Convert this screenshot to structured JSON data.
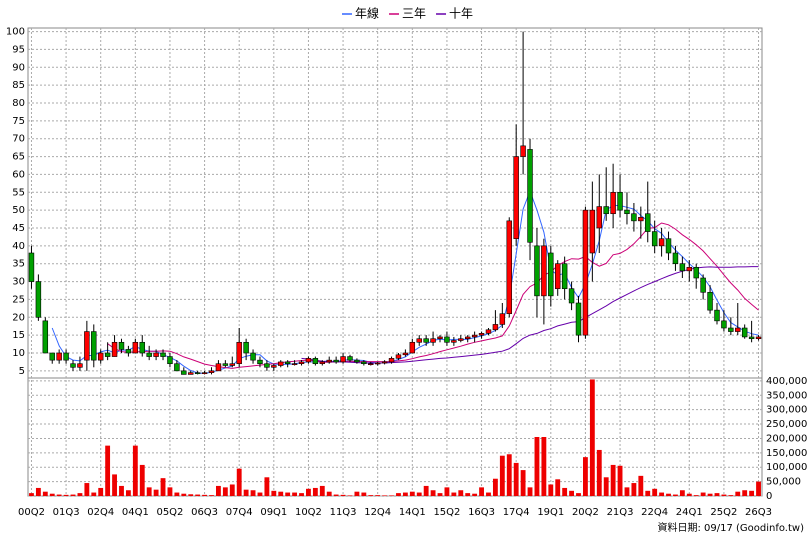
{
  "chart_data": {
    "type": "candlestick",
    "categories": [
      "00Q2",
      null,
      null,
      null,
      null,
      "01Q3",
      null,
      null,
      null,
      null,
      "02Q4",
      null,
      null,
      null,
      null,
      "04Q1",
      null,
      null,
      null,
      null,
      "05Q2",
      null,
      null,
      null,
      null,
      "06Q3",
      null,
      null,
      null,
      null,
      "07Q4",
      null,
      null,
      null,
      null,
      "09Q1",
      null,
      null,
      null,
      null,
      "10Q2",
      null,
      null,
      null,
      null,
      "11Q3",
      null,
      null,
      null,
      null,
      "12Q4",
      null,
      null,
      null,
      null,
      "14Q1",
      null,
      null,
      null,
      null,
      "15Q2",
      null,
      null,
      null,
      null,
      "16Q3",
      null,
      null,
      null,
      null,
      "17Q4",
      null,
      null,
      null,
      null,
      "19Q1",
      null,
      null,
      null,
      null,
      "20Q2",
      null,
      null,
      null,
      null,
      "21Q3",
      null,
      null,
      null,
      null,
      "22Q4",
      null,
      null,
      null,
      null,
      "24Q1",
      null,
      null,
      null,
      null,
      "25Q2",
      null,
      null,
      null,
      null,
      "26Q3"
    ],
    "open": [
      38,
      30,
      19,
      10,
      8,
      10,
      7,
      6,
      8,
      16,
      8,
      10,
      9,
      13,
      11,
      10,
      13,
      10,
      9,
      10,
      9,
      7,
      5,
      4,
      4.5,
      4.2,
      4.5,
      5,
      7,
      6.5,
      7,
      13,
      10,
      8,
      7,
      6,
      6.5,
      7.5,
      7,
      7,
      7.5,
      8.5,
      7,
      7.5,
      8,
      7.5,
      9,
      8,
      7.5,
      7,
      7,
      7.2,
      7.5,
      8.5,
      9.5,
      10,
      13,
      14,
      13,
      14,
      14.5,
      13,
      13.5,
      14,
      14.5,
      15,
      15.5,
      16.5,
      18,
      21,
      42,
      65,
      67,
      40,
      26,
      38,
      28,
      35,
      28,
      24,
      15,
      38,
      45,
      51,
      49,
      55,
      50,
      49,
      47,
      49,
      44,
      40,
      42,
      38,
      35,
      33,
      34,
      31,
      27,
      22,
      19,
      17,
      16,
      17,
      14.5,
      14
    ],
    "high": [
      40,
      32,
      20,
      10,
      11,
      11,
      8,
      9,
      19,
      18,
      11,
      13,
      15,
      14,
      12,
      14,
      15,
      12,
      11,
      11,
      10,
      8,
      6,
      5,
      5,
      5,
      6,
      8,
      8,
      9,
      17,
      14,
      11,
      9,
      8,
      7,
      8,
      8,
      8,
      8,
      9,
      9,
      8,
      9,
      9,
      10,
      9.5,
      8.5,
      8,
      7.5,
      7.5,
      8,
      9,
      10,
      11,
      14,
      15,
      15,
      16,
      15,
      16,
      14.5,
      15,
      15,
      16,
      16,
      17,
      22,
      24,
      48,
      74,
      100,
      70,
      45,
      42,
      40,
      36,
      37,
      30,
      26,
      51,
      58,
      60,
      62,
      63,
      60,
      55,
      52,
      51,
      58,
      47,
      45,
      44,
      40,
      37,
      36,
      35,
      32,
      29,
      24,
      22,
      20,
      24,
      18,
      19,
      15
    ],
    "low": [
      28,
      19,
      10,
      7,
      7,
      7,
      5,
      5,
      5,
      6,
      7,
      8,
      9,
      10,
      9,
      10,
      9,
      8,
      8,
      8,
      6,
      5,
      4,
      4,
      4,
      4,
      4,
      5,
      6,
      6,
      6,
      8,
      7,
      6,
      5,
      5,
      6,
      6,
      6.5,
      6.5,
      7,
      6.5,
      6.5,
      7,
      7,
      7,
      7.5,
      7,
      6.5,
      6.5,
      6.5,
      6.8,
      7,
      8,
      9,
      10,
      12,
      12,
      12,
      13,
      12,
      12,
      13,
      13,
      13,
      14,
      15,
      16,
      17,
      20,
      40,
      60,
      36,
      20,
      18,
      23,
      26,
      25,
      22,
      13,
      14,
      30,
      38,
      47,
      45,
      48,
      46,
      44,
      42,
      41,
      38,
      37,
      36,
      33,
      31,
      30,
      28,
      25,
      21,
      18,
      16,
      15,
      15,
      14,
      13,
      13.5
    ],
    "close": [
      30,
      20,
      10,
      8,
      10,
      8,
      6,
      7,
      16,
      8,
      10,
      9,
      13,
      11,
      10,
      13,
      10,
      9,
      10,
      9,
      7,
      5,
      4,
      4.5,
      4.2,
      4.5,
      5,
      7,
      6.5,
      7,
      13,
      10,
      8,
      7,
      6,
      6.5,
      7.5,
      7,
      7,
      7.5,
      8.5,
      7,
      7.5,
      8,
      7.5,
      9,
      8,
      7.5,
      7,
      7,
      7.2,
      7.5,
      8.5,
      9.5,
      10,
      13,
      14,
      13,
      14,
      14.5,
      13,
      13.5,
      14,
      14.5,
      15,
      15.5,
      16.5,
      18,
      21,
      47,
      65,
      68,
      41,
      26,
      40,
      26,
      35,
      28,
      24,
      15,
      50,
      50,
      51,
      49,
      55,
      50,
      49,
      47,
      48,
      44,
      40,
      42,
      38,
      35,
      33,
      34,
      31,
      27,
      22,
      19,
      17,
      16,
      17,
      14.5,
      14,
      14.5
    ],
    "up_color": "#ff0000",
    "down_color": "#00a000",
    "ylim": [
      3,
      101
    ],
    "yticks": [
      5,
      10,
      15,
      20,
      25,
      30,
      35,
      40,
      45,
      50,
      55,
      60,
      65,
      70,
      75,
      80,
      85,
      90,
      95,
      100
    ],
    "grid": true,
    "lines": [
      {
        "name": "年線",
        "color": "#3366ff",
        "values": [
          null,
          null,
          null,
          17,
          12,
          9,
          8,
          7.8,
          9.3,
          9.3,
          10.3,
          10.8,
          10,
          10.8,
          10.8,
          11.8,
          11,
          10.5,
          10.5,
          9.5,
          8.8,
          7.8,
          6.3,
          5.1,
          4.4,
          4.3,
          4.6,
          5.2,
          5.8,
          6.4,
          8.4,
          9.1,
          9.5,
          9.5,
          7.8,
          6.9,
          6.8,
          6.8,
          7,
          7.3,
          7.5,
          7.5,
          7.6,
          7.8,
          7.5,
          8,
          8.1,
          8,
          7.9,
          7.4,
          7.2,
          7.2,
          7.6,
          8.2,
          8.9,
          10.3,
          11.6,
          12.5,
          13.5,
          13.9,
          13.6,
          13.8,
          13.8,
          13.8,
          14.3,
          14.8,
          15.4,
          16.3,
          17.8,
          25.6,
          37.8,
          50.3,
          55.3,
          50,
          43.8,
          33.3,
          31.8,
          32.3,
          28.3,
          25.5,
          29.3,
          34.8,
          41.5,
          50,
          51.3,
          51.3,
          50.8,
          50.3,
          48.5,
          47,
          44.8,
          43.5,
          41,
          38.8,
          37,
          35,
          33.3,
          31.3,
          28.5,
          24.8,
          21.3,
          18.5,
          17.3,
          16.1,
          15.4,
          15
        ]
      },
      {
        "name": "三年",
        "color": "#cc0077",
        "values": [
          null,
          null,
          null,
          null,
          null,
          null,
          null,
          null,
          null,
          null,
          null,
          12.6,
          11.2,
          10.4,
          10.2,
          10.3,
          10.4,
          10.5,
          10.5,
          10.6,
          10.5,
          9.8,
          8.9,
          8.3,
          7.6,
          6.9,
          6.5,
          6.2,
          5.9,
          5.7,
          6,
          6.2,
          6.4,
          6.6,
          6.8,
          7,
          7.3,
          7.5,
          7.7,
          7.9,
          8,
          7.8,
          7.4,
          7.4,
          7.5,
          7.6,
          7.7,
          7.6,
          7.6,
          7.6,
          7.6,
          7.6,
          7.6,
          7.8,
          8,
          8.4,
          8.9,
          9.3,
          9.8,
          10.4,
          10.9,
          11.4,
          11.9,
          12.5,
          13,
          13.4,
          13.8,
          14.2,
          14.8,
          17.6,
          21.9,
          26.4,
          28.6,
          29.6,
          31.8,
          32.7,
          34.5,
          35.6,
          36.4,
          36.3,
          37,
          35.4,
          34.3,
          35.1,
          37.5,
          37.9,
          39,
          40.6,
          42.6,
          44.9,
          45.1,
          46.4,
          45.9,
          44.7,
          43.1,
          41.8,
          40.3,
          38.6,
          36.4,
          34.3,
          31.9,
          29.6,
          27.6,
          25.3,
          23.6,
          22
        ]
      },
      {
        "name": "十年",
        "color": "#6600aa",
        "values": [
          null,
          null,
          null,
          null,
          null,
          null,
          null,
          null,
          null,
          null,
          null,
          null,
          null,
          null,
          null,
          null,
          null,
          null,
          null,
          null,
          null,
          null,
          null,
          null,
          null,
          null,
          null,
          null,
          null,
          null,
          null,
          null,
          null,
          null,
          null,
          null,
          null,
          null,
          null,
          8.5,
          8.3,
          8,
          7.7,
          7.6,
          7.5,
          7.5,
          7.4,
          7.3,
          7.2,
          7.2,
          7.2,
          7.2,
          7.3,
          7.4,
          7.5,
          7.7,
          7.9,
          8.1,
          8.3,
          8.5,
          8.6,
          8.8,
          9,
          9.2,
          9.4,
          9.6,
          9.9,
          10.2,
          10.5,
          11.2,
          12.6,
          14.1,
          15,
          15.5,
          16.3,
          16.8,
          17.6,
          18.1,
          18.6,
          18.8,
          19.9,
          21,
          22.1,
          23.2,
          24.4,
          25.4,
          26.4,
          27.4,
          28.3,
          29.2,
          30,
          30.8,
          31.6,
          32.3,
          32.9,
          33.4,
          33.8,
          34,
          34.1,
          34,
          34,
          34,
          34.1,
          34.1,
          34.2,
          34.2
        ]
      }
    ],
    "volume": {
      "color": "#ee0000",
      "values": [
        10000,
        28000,
        15000,
        8000,
        5000,
        4000,
        5000,
        10000,
        45000,
        12000,
        28000,
        175000,
        75000,
        35000,
        20000,
        175000,
        108000,
        30000,
        22000,
        62000,
        30000,
        12000,
        8000,
        6000,
        5000,
        4000,
        3000,
        35000,
        30000,
        40000,
        95000,
        22000,
        20000,
        12000,
        65000,
        18000,
        15000,
        12000,
        12000,
        10000,
        25000,
        28000,
        35000,
        15000,
        5000,
        4000,
        2000,
        15000,
        12000,
        3000,
        3000,
        2000,
        2000,
        10000,
        12000,
        15000,
        12000,
        35000,
        20000,
        10000,
        30000,
        12000,
        20000,
        10000,
        8000,
        30000,
        12000,
        60000,
        140000,
        145000,
        115000,
        90000,
        30000,
        205000,
        205000,
        40000,
        58000,
        28000,
        18000,
        10000,
        135000,
        405000,
        160000,
        65000,
        108000,
        105000,
        30000,
        45000,
        70000,
        18000,
        25000,
        12000,
        8000,
        5000,
        20000,
        8000,
        3000,
        12000,
        8000,
        10000,
        5000,
        3000,
        15000,
        20000,
        18000,
        50000
      ],
      "ylim": [
        0,
        410000
      ],
      "yticks": [
        0,
        {
          "value": 50000,
          "label": "50,000"
        },
        {
          "value": 100000,
          "label": "100,000"
        },
        {
          "value": 150000,
          "label": "150,000"
        },
        {
          "value": 200000,
          "label": "200,000"
        },
        {
          "value": 250000,
          "label": "250,000"
        },
        {
          "value": 300000,
          "label": "300,000"
        },
        {
          "value": 350000,
          "label": "350,000"
        },
        {
          "value": 400000,
          "label": "400,000"
        }
      ]
    },
    "footnote": "資料日期: 09/17 (Goodinfo.tw)"
  }
}
